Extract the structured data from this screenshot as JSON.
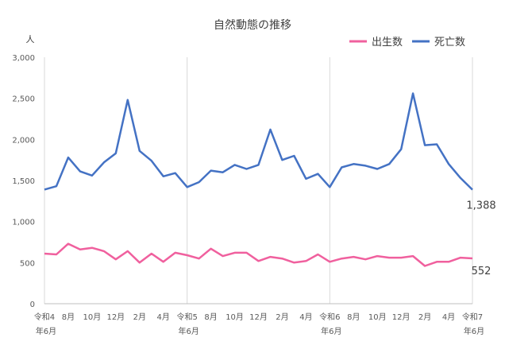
{
  "chart_data": {
    "type": "line",
    "title": "自然動態の推移",
    "ylabel": "人",
    "ylim": [
      0,
      3000
    ],
    "yticks": [
      0,
      500,
      1000,
      1500,
      2000,
      2500,
      3000
    ],
    "ytick_labels": [
      "0",
      "500",
      "1,000",
      "1,500",
      "2,000",
      "2,500",
      "3,000"
    ],
    "grid": "vertical",
    "legend_placement": "top-right",
    "x": [
      "R4-06",
      "R4-07",
      "R4-08",
      "R4-09",
      "R4-10",
      "R4-11",
      "R4-12",
      "R5-01",
      "R5-02",
      "R5-03",
      "R5-04",
      "R5-05",
      "R5-06",
      "R5-07",
      "R5-08",
      "R5-09",
      "R5-10",
      "R5-11",
      "R5-12",
      "R6-01",
      "R6-02",
      "R6-03",
      "R6-04",
      "R6-05",
      "R6-06",
      "R6-07",
      "R6-08",
      "R6-09",
      "R6-10",
      "R6-11",
      "R6-12",
      "R7-01",
      "R7-02",
      "R7-03",
      "R7-04",
      "R7-05",
      "R7-06"
    ],
    "xtick_labels": [
      {
        "i": 0,
        "line1": "令和4",
        "line2": "年6月"
      },
      {
        "i": 2,
        "line1": "8月",
        "line2": ""
      },
      {
        "i": 4,
        "line1": "10月",
        "line2": ""
      },
      {
        "i": 6,
        "line1": "12月",
        "line2": ""
      },
      {
        "i": 8,
        "line1": "2月",
        "line2": ""
      },
      {
        "i": 10,
        "line1": "4月",
        "line2": ""
      },
      {
        "i": 12,
        "line1": "令和5",
        "line2": "年6月"
      },
      {
        "i": 14,
        "line1": "8月",
        "line2": ""
      },
      {
        "i": 16,
        "line1": "10月",
        "line2": ""
      },
      {
        "i": 18,
        "line1": "12月",
        "line2": ""
      },
      {
        "i": 20,
        "line1": "2月",
        "line2": ""
      },
      {
        "i": 22,
        "line1": "4月",
        "line2": ""
      },
      {
        "i": 24,
        "line1": "令和6",
        "line2": "年6月"
      },
      {
        "i": 26,
        "line1": "8月",
        "line2": ""
      },
      {
        "i": 28,
        "line1": "10月",
        "line2": ""
      },
      {
        "i": 30,
        "line1": "12月",
        "line2": ""
      },
      {
        "i": 32,
        "line1": "2月",
        "line2": ""
      },
      {
        "i": 34,
        "line1": "4月",
        "line2": ""
      },
      {
        "i": 36,
        "line1": "令和7",
        "line2": "年6月"
      }
    ],
    "vgrid_at": [
      12,
      24
    ],
    "series": [
      {
        "name": "出生数",
        "color": "#f0609e",
        "values": [
          610,
          600,
          730,
          660,
          680,
          640,
          540,
          640,
          500,
          610,
          510,
          620,
          590,
          550,
          670,
          580,
          620,
          620,
          520,
          570,
          550,
          500,
          520,
          600,
          510,
          550,
          570,
          540,
          580,
          560,
          560,
          580,
          460,
          510,
          510,
          560,
          552
        ],
        "end_label": "552"
      },
      {
        "name": "死亡数",
        "color": "#4472c4",
        "values": [
          1390,
          1430,
          1780,
          1610,
          1560,
          1720,
          1830,
          2480,
          1860,
          1740,
          1550,
          1590,
          1420,
          1480,
          1620,
          1600,
          1690,
          1640,
          1690,
          2120,
          1750,
          1800,
          1520,
          1580,
          1420,
          1660,
          1700,
          1680,
          1640,
          1700,
          1880,
          2560,
          1930,
          1940,
          1700,
          1530,
          1388
        ],
        "end_label": "1,388"
      }
    ]
  }
}
